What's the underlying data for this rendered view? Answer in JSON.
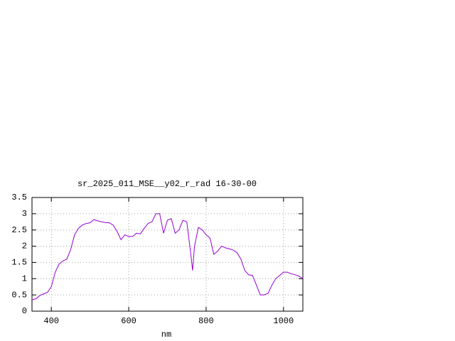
{
  "chart_data": {
    "type": "line",
    "title": "sr_2025_011_MSE__y02_r_rad 16-30-00",
    "x_label": "nm",
    "x": [
      350,
      360,
      370,
      380,
      390,
      400,
      410,
      420,
      430,
      440,
      450,
      460,
      470,
      480,
      490,
      500,
      510,
      520,
      530,
      540,
      550,
      560,
      570,
      580,
      590,
      600,
      610,
      620,
      630,
      640,
      650,
      660,
      670,
      680,
      690,
      700,
      710,
      720,
      730,
      740,
      750,
      760,
      765,
      770,
      780,
      790,
      800,
      810,
      820,
      830,
      840,
      850,
      860,
      870,
      880,
      890,
      900,
      910,
      920,
      930,
      940,
      950,
      960,
      970,
      980,
      990,
      1000,
      1010,
      1020,
      1030,
      1040,
      1050
    ],
    "series": [
      {
        "color": "#9400d3",
        "values": [
          0.35,
          0.38,
          0.48,
          0.53,
          0.58,
          0.75,
          1.2,
          1.45,
          1.55,
          1.6,
          1.9,
          2.35,
          2.55,
          2.65,
          2.7,
          2.72,
          2.82,
          2.78,
          2.75,
          2.73,
          2.72,
          2.65,
          2.45,
          2.2,
          2.35,
          2.3,
          2.3,
          2.4,
          2.38,
          2.55,
          2.7,
          2.75,
          3.0,
          3.0,
          2.4,
          2.8,
          2.85,
          2.4,
          2.5,
          2.8,
          2.75,
          1.8,
          1.25,
          2.0,
          2.58,
          2.5,
          2.35,
          2.25,
          1.75,
          1.85,
          2.0,
          1.95,
          1.92,
          1.88,
          1.8,
          1.6,
          1.25,
          1.12,
          1.1,
          0.8,
          0.5,
          0.5,
          0.55,
          0.8,
          1.0,
          1.1,
          1.2,
          1.2,
          1.15,
          1.12,
          1.08,
          1.0
        ]
      }
    ],
    "xlim": [
      350,
      1050
    ],
    "xticks": [
      400,
      600,
      800,
      1000
    ],
    "ylim": [
      0,
      3.5
    ],
    "yticks": [
      0,
      0.5,
      1,
      1.5,
      2,
      2.5,
      3,
      3.5
    ],
    "grid": true
  }
}
